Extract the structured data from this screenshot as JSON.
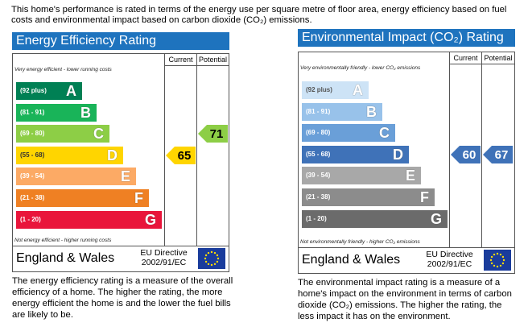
{
  "intro": "This home's performance is rated in terms of the energy use per square metre of floor area, energy efficiency based on fuel costs and environmental impact based on carbon dioxide (CO₂) emissions.",
  "panels": [
    {
      "title": "Energy Efficiency Rating",
      "current_header": "Current",
      "potential_header": "Potential",
      "top_note": "Very energy efficient - lower running costs",
      "bottom_note": "Not energy efficient - higher running costs",
      "bands": [
        {
          "range": "(92 plus)",
          "letter": "A",
          "color": "#008054"
        },
        {
          "range": "(81 - 91)",
          "letter": "B",
          "color": "#19b459"
        },
        {
          "range": "(69 - 80)",
          "letter": "C",
          "color": "#8dce46"
        },
        {
          "range": "(55 - 68)",
          "letter": "D",
          "color": "#ffd500"
        },
        {
          "range": "(39 - 54)",
          "letter": "E",
          "color": "#fcaa65"
        },
        {
          "range": "(21 - 38)",
          "letter": "F",
          "color": "#ef8023"
        },
        {
          "range": "(1 - 20)",
          "letter": "G",
          "color": "#e9153b"
        }
      ],
      "current": 65,
      "potential": 71,
      "region": "England & Wales",
      "directive": "EU Directive",
      "directive_number": "2002/91/EC",
      "description": "The energy efficiency rating is a measure of the overall efficiency of a home. The higher the rating, the more energy efficient the home is and the lower the fuel bills are likely to be."
    },
    {
      "title": "Environmental Impact (CO₂) Rating",
      "current_header": "Current",
      "potential_header": "Potential",
      "top_note": "Very environmentally friendly - lower CO₂ emissions",
      "bottom_note": "Not environmentally friendly - higher CO₂ emissions",
      "bands": [
        {
          "range": "(92 plus)",
          "letter": "A",
          "color": "#cde3f6"
        },
        {
          "range": "(81 - 91)",
          "letter": "B",
          "color": "#98c2ea"
        },
        {
          "range": "(69 - 80)",
          "letter": "C",
          "color": "#6a9fd8"
        },
        {
          "range": "(55 - 68)",
          "letter": "D",
          "color": "#3f72b8"
        },
        {
          "range": "(39 - 54)",
          "letter": "E",
          "color": "#a8a8a8"
        },
        {
          "range": "(21 - 38)",
          "letter": "F",
          "color": "#8c8c8c"
        },
        {
          "range": "(1 - 20)",
          "letter": "G",
          "color": "#6b6b6b"
        }
      ],
      "current": 60,
      "potential": 67,
      "region": "England & Wales",
      "directive": "EU Directive",
      "directive_number": "2002/91/EC",
      "description": "The environmental impact rating is a measure of a home's impact on the environment in terms of carbon dioxide (CO₂) emissions. The higher the rating, the less impact it has on the environment."
    }
  ]
}
